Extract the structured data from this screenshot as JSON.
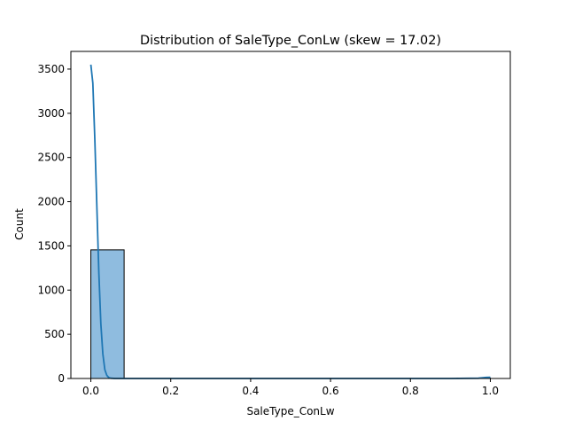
{
  "chart_data": {
    "type": "bar",
    "title": "Distribution of SaleType_ConLw (skew = 17.02)",
    "xlabel": "SaleType_ConLw",
    "ylabel": "Count",
    "xlim": [
      -0.05,
      1.05
    ],
    "ylim": [
      0,
      3700
    ],
    "xticks": [
      "0.0",
      "0.2",
      "0.4",
      "0.6",
      "0.8",
      "1.0"
    ],
    "xtick_values": [
      0.0,
      0.2,
      0.4,
      0.6,
      0.8,
      1.0
    ],
    "yticks": [
      "0",
      "500",
      "1000",
      "1500",
      "2000",
      "2500",
      "3000",
      "3500"
    ],
    "ytick_values": [
      0,
      500,
      1000,
      1500,
      2000,
      2500,
      3000,
      3500
    ],
    "bins": [
      {
        "x0": 0.0,
        "x1": 0.0833,
        "count": 1455
      },
      {
        "x0": 0.9167,
        "x1": 1.0,
        "count": 5
      }
    ],
    "kde": {
      "x": [
        0.0,
        0.005,
        0.01,
        0.015,
        0.02,
        0.025,
        0.03,
        0.035,
        0.04,
        0.045,
        0.05,
        0.06,
        0.08,
        0.1,
        0.3,
        0.5,
        0.7,
        0.9,
        0.97,
        0.99,
        1.0
      ],
      "y": [
        3550,
        3340,
        2700,
        1950,
        1200,
        620,
        280,
        100,
        35,
        10,
        3,
        0,
        0,
        0,
        0,
        0,
        0,
        0,
        3,
        12,
        14
      ]
    },
    "grid": false,
    "legend": "none",
    "colors": {
      "bar_fill": "#8fbcdf",
      "bar_edge": "#000000",
      "kde_line": "#1f77b4"
    }
  }
}
